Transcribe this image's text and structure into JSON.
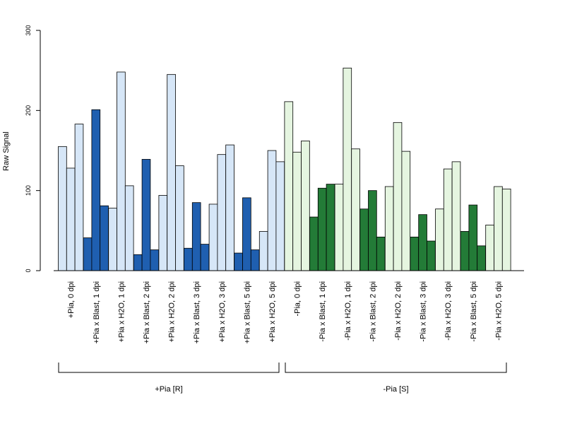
{
  "chart_data": {
    "type": "bar",
    "ylabel": "Raw Signal",
    "xlabel": "",
    "ylim": [
      0,
      300
    ],
    "yticks": [
      0,
      100,
      200,
      300
    ],
    "colors": {
      "plus_light": "#d6e6f7",
      "plus_dark": "#1f5fb0",
      "minus_light": "#e5f5e0",
      "minus_dark": "#237b37"
    },
    "categories": [
      {
        "label": "+Pia, 0 dpi",
        "values": [
          155,
          128,
          183
        ],
        "color": "plus_light"
      },
      {
        "label": "+Pia x Blast, 1 dpi",
        "values": [
          41,
          201,
          81
        ],
        "color": "plus_dark"
      },
      {
        "label": "+Pia x H2O, 1 dpi",
        "values": [
          78,
          248,
          106
        ],
        "color": "plus_light"
      },
      {
        "label": "+Pia x Blast, 2 dpi",
        "values": [
          20,
          139,
          26
        ],
        "color": "plus_dark"
      },
      {
        "label": "+Pia x H2O, 2 dpi",
        "values": [
          94,
          245,
          131
        ],
        "color": "plus_light"
      },
      {
        "label": "+Pia x Blast, 3 dpi",
        "values": [
          28,
          85,
          33
        ],
        "color": "plus_dark"
      },
      {
        "label": "+Pia x H2O, 3 dpi",
        "values": [
          83,
          145,
          157
        ],
        "color": "plus_light"
      },
      {
        "label": "+Pia x Blast, 5 dpi",
        "values": [
          22,
          91,
          26
        ],
        "color": "plus_dark"
      },
      {
        "label": "+Pia x H2O, 5 dpi",
        "values": [
          49,
          150,
          136
        ],
        "color": "plus_light"
      },
      {
        "label": "-Pia, 0 dpi",
        "values": [
          211,
          148,
          162
        ],
        "color": "minus_light"
      },
      {
        "label": "-Pia x Blast, 1 dpi",
        "values": [
          67,
          103,
          108
        ],
        "color": "minus_dark"
      },
      {
        "label": "-Pia x H2O, 1 dpi",
        "values": [
          108,
          253,
          152
        ],
        "color": "minus_light"
      },
      {
        "label": "-Pia x Blast, 2 dpi",
        "values": [
          77,
          100,
          42
        ],
        "color": "minus_dark"
      },
      {
        "label": "-Pia x H2O, 2 dpi",
        "values": [
          105,
          185,
          149
        ],
        "color": "minus_light"
      },
      {
        "label": "-Pia x Blast, 3 dpi",
        "values": [
          42,
          70,
          37
        ],
        "color": "minus_dark"
      },
      {
        "label": "-Pia x H2O, 3 dpi",
        "values": [
          77,
          127,
          136
        ],
        "color": "minus_light"
      },
      {
        "label": "-Pia x Blast, 5 dpi",
        "values": [
          49,
          82,
          31
        ],
        "color": "minus_dark"
      },
      {
        "label": "-Pia x H2O, 5 dpi",
        "values": [
          57,
          105,
          102
        ],
        "color": "minus_light"
      }
    ],
    "groups": [
      {
        "label": "+Pia [R]",
        "from": 0,
        "to": 8
      },
      {
        "label": "-Pia [S]",
        "from": 9,
        "to": 17
      }
    ],
    "grid": false,
    "legend": "none"
  }
}
